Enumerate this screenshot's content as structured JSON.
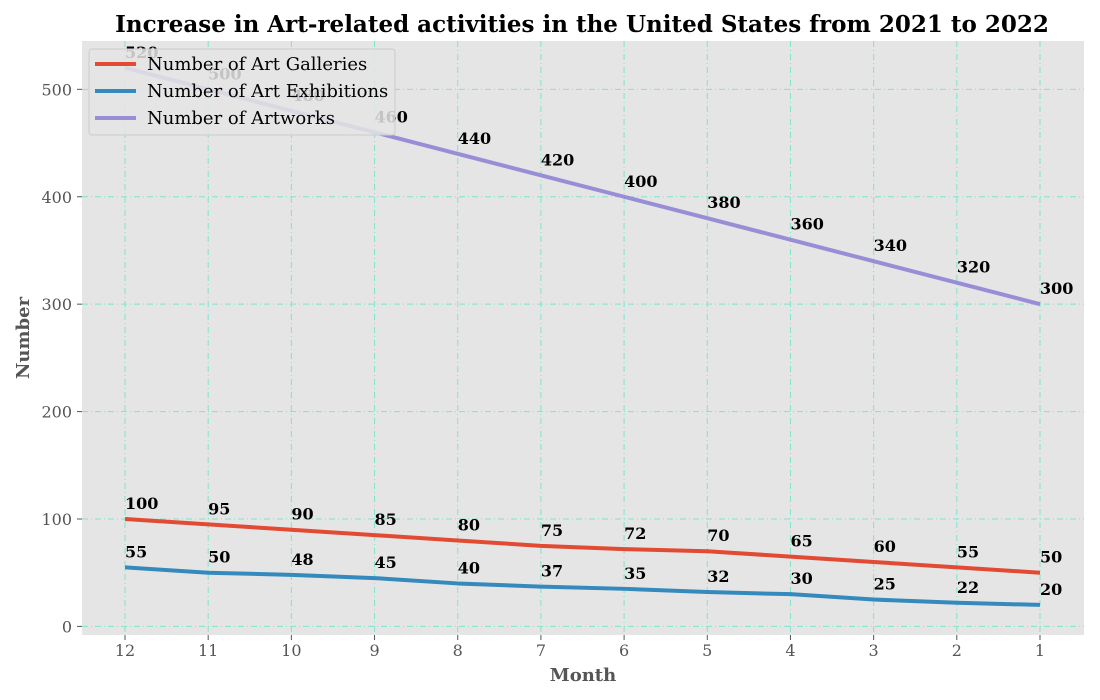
{
  "chart_data": {
    "type": "line",
    "title": "Increase in Art-related activities in the United States from 2021 to 2022",
    "xlabel": "Month",
    "ylabel": "Number",
    "x": [
      12,
      11,
      10,
      9,
      8,
      7,
      6,
      5,
      4,
      3,
      2,
      1
    ],
    "ylim": [
      -8,
      545
    ],
    "yticks": [
      0,
      100,
      200,
      300,
      400,
      500
    ],
    "grid": true,
    "legend_position": "top-left",
    "series": [
      {
        "name": "Number of Art Galleries",
        "color": "#E24A33",
        "values": [
          100,
          95,
          90,
          85,
          80,
          75,
          72,
          70,
          65,
          60,
          55,
          50
        ]
      },
      {
        "name": "Number of Art Exhibitions",
        "color": "#348ABD",
        "values": [
          55,
          50,
          48,
          45,
          40,
          37,
          35,
          32,
          30,
          25,
          22,
          20
        ]
      },
      {
        "name": "Number of Artworks",
        "color": "#988ED5",
        "values": [
          520,
          500,
          480,
          460,
          440,
          420,
          400,
          380,
          360,
          340,
          320,
          300
        ]
      }
    ],
    "colors": {
      "plot_background": "#E5E5E5",
      "grid": "#7FE5CC"
    }
  }
}
